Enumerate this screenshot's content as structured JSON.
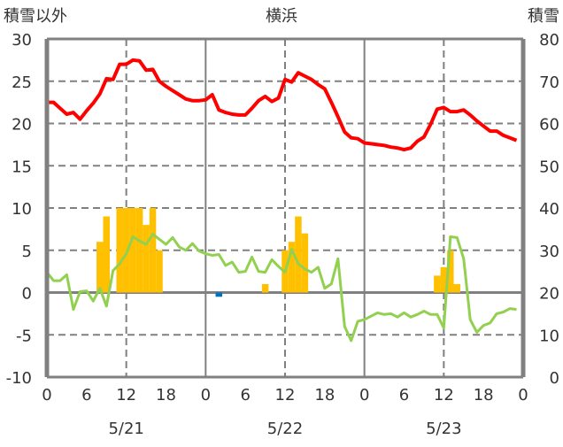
{
  "chart_data": {
    "type": "line",
    "title": "横浜",
    "left_axis_label": "積雪以外",
    "right_axis_label": "積雪",
    "ylim": [
      -10,
      30
    ],
    "yticks": [
      -10,
      -5,
      0,
      5,
      10,
      15,
      20,
      25,
      30
    ],
    "ylim_right": [
      0,
      80
    ],
    "yticks_right": [
      0,
      10,
      20,
      30,
      40,
      50,
      60,
      70,
      80
    ],
    "xlim_hours": [
      0,
      72
    ],
    "xtick_labels": [
      "0",
      "6",
      "12",
      "18",
      "0",
      "6",
      "12",
      "18",
      "0",
      "6",
      "12",
      "18",
      "0"
    ],
    "day_labels": [
      "5/21",
      "5/22",
      "5/23"
    ],
    "grid": true,
    "colors": {
      "red_line": "#ff0000",
      "green_line": "#92d050",
      "orange_bars": "#ffc000",
      "blue_bars": "#0070c0",
      "axis": "#808080"
    },
    "series": [
      {
        "name": "red-line",
        "kind": "line",
        "color": "#ff0000",
        "values": [
          22.5,
          22.5,
          21.8,
          21.1,
          21.3,
          20.5,
          21.5,
          22.4,
          23.5,
          25.3,
          25.2,
          27,
          27,
          27.5,
          27.4,
          26.3,
          26.4,
          25,
          24.4,
          23.9,
          23.4,
          22.9,
          22.7,
          22.7,
          22.8,
          23.4,
          21.6,
          21.3,
          21.1,
          21,
          21,
          21.8,
          22.7,
          23.2,
          22.6,
          23,
          25.2,
          24.9,
          26,
          25.6,
          25.2,
          24.6,
          24.1,
          22.5,
          20.8,
          19,
          18.3,
          18.2,
          17.7,
          17.6,
          17.5,
          17.4,
          17.2,
          17.1,
          16.9,
          17.1,
          17.9,
          18.4,
          19.9,
          21.7,
          21.9,
          21.4,
          21.4,
          21.6,
          21,
          20.3,
          19.7,
          19.1,
          19.1,
          18.6,
          18.3,
          18
        ]
      },
      {
        "name": "green-line",
        "kind": "line",
        "color": "#92d050",
        "values": [
          2.4,
          1.4,
          1.4,
          2.1,
          -2,
          0.1,
          0.2,
          -1,
          0.5,
          -1.6,
          2.6,
          3.4,
          4.6,
          6.6,
          6.1,
          5.7,
          6.9,
          6.3,
          5.7,
          6.5,
          5.4,
          5,
          5.8,
          4.9,
          4.6,
          4.4,
          4.5,
          3.2,
          3.6,
          2.4,
          2.5,
          4.2,
          2.5,
          2.4,
          3.9,
          3.1,
          2.4,
          5.1,
          3.4,
          2.8,
          2.4,
          3,
          0.5,
          1,
          4,
          -4,
          -5.7,
          -3.4,
          -3.2,
          -2.8,
          -2.4,
          -2.6,
          -2.5,
          -2.9,
          -2.4,
          -2.9,
          -2.6,
          -2.2,
          -2.6,
          -2.6,
          -4.2,
          6.6,
          6.5,
          4,
          -3.2,
          -4.7,
          -3.9,
          -3.6,
          -2.5,
          -2.3,
          -1.9,
          -2
        ]
      },
      {
        "name": "orange-bars",
        "kind": "bar",
        "color": "#ffc000",
        "hours": [
          8,
          9,
          11,
          12,
          13,
          14,
          15,
          16,
          17,
          33,
          36,
          37,
          38,
          39,
          59,
          60,
          61,
          62
        ],
        "values": [
          6,
          9,
          10,
          10,
          10,
          10,
          8,
          10,
          5,
          1,
          5,
          6,
          9,
          7,
          2,
          3,
          5,
          1
        ]
      },
      {
        "name": "blue-bars",
        "kind": "bar",
        "color": "#0070c0",
        "hours": [
          26
        ],
        "values": [
          -0.5
        ]
      }
    ]
  }
}
